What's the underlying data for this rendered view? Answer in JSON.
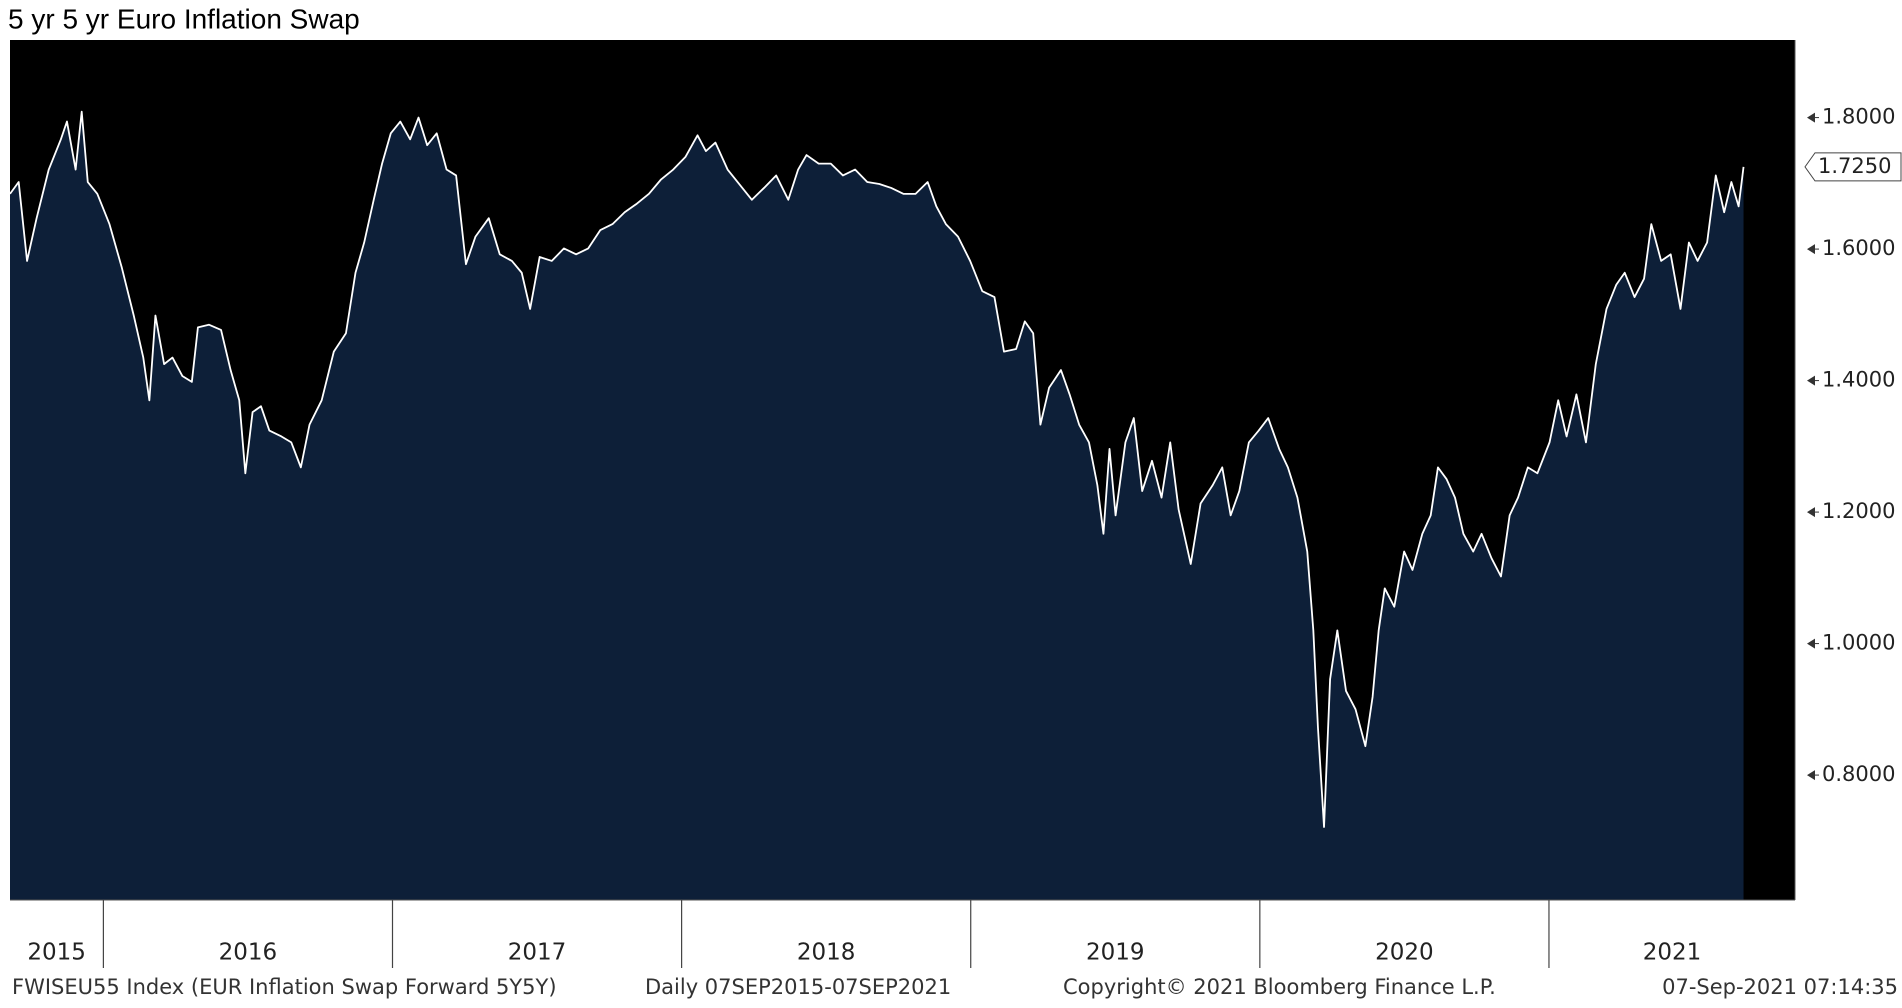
{
  "chart_data": {
    "type": "area",
    "title": "5 yr 5 yr Euro Inflation Swap",
    "footer": [
      "FWISEU55 Index (EUR Inflation Swap Forward 5Y5Y)",
      "Daily 07SEP2015-07SEP2021",
      "Copyright© 2021 Bloomberg Finance L.P.",
      "07-Sep-2021 07:14:35"
    ],
    "x": [
      2015.677,
      2015.707,
      2015.736,
      2015.769,
      2015.811,
      2015.853,
      2015.874,
      2015.904,
      2015.925,
      2015.946,
      2015.979,
      2016.021,
      2016.063,
      2016.105,
      2016.138,
      2016.159,
      2016.18,
      2016.21,
      2016.239,
      2016.273,
      2016.306,
      2016.327,
      2016.365,
      2016.407,
      2016.44,
      2016.47,
      2016.491,
      2016.516,
      2016.545,
      2016.574,
      2016.616,
      2016.65,
      2016.683,
      2016.713,
      2016.755,
      2016.797,
      2016.839,
      2016.872,
      2016.902,
      2016.935,
      2016.964,
      2016.994,
      2017.027,
      2017.061,
      2017.09,
      2017.12,
      2017.153,
      2017.187,
      2017.22,
      2017.254,
      2017.287,
      2017.333,
      2017.371,
      2017.413,
      2017.447,
      2017.476,
      2017.509,
      2017.551,
      2017.593,
      2017.635,
      2017.677,
      2017.719,
      2017.761,
      2017.803,
      2017.845,
      2017.887,
      2017.929,
      2017.971,
      2018.013,
      2018.055,
      2018.084,
      2018.117,
      2018.159,
      2018.21,
      2018.243,
      2018.285,
      2018.327,
      2018.369,
      2018.403,
      2018.432,
      2018.474,
      2018.516,
      2018.558,
      2018.6,
      2018.642,
      2018.684,
      2018.725,
      2018.767,
      2018.809,
      2018.851,
      2018.881,
      2018.914,
      2018.956,
      2018.998,
      2019.04,
      2019.082,
      2019.115,
      2019.157,
      2019.187,
      2019.216,
      2019.241,
      2019.271,
      2019.312,
      2019.342,
      2019.375,
      2019.409,
      2019.438,
      2019.459,
      2019.48,
      2019.501,
      2019.535,
      2019.564,
      2019.593,
      2019.627,
      2019.66,
      2019.69,
      2019.719,
      2019.761,
      2019.795,
      2019.837,
      2019.87,
      2019.899,
      2019.929,
      2019.962,
      2019.996,
      2020.029,
      2020.067,
      2020.097,
      2020.13,
      2020.164,
      2020.185,
      2020.201,
      2020.222,
      2020.243,
      2020.268,
      2020.298,
      2020.331,
      2020.365,
      2020.39,
      2020.411,
      2020.432,
      2020.465,
      2020.499,
      2020.528,
      2020.562,
      2020.591,
      2020.616,
      2020.646,
      2020.675,
      2020.704,
      2020.738,
      2020.767,
      2020.801,
      2020.834,
      2020.864,
      2020.893,
      2020.927,
      2020.96,
      2021.002,
      2021.032,
      2021.061,
      2021.095,
      2021.128,
      2021.162,
      2021.199,
      2021.233,
      2021.262,
      2021.296,
      2021.329,
      2021.354,
      2021.388,
      2021.421,
      2021.455,
      2021.484,
      2021.514,
      2021.547,
      2021.577,
      2021.606,
      2021.631,
      2021.656,
      2021.673
    ],
    "values": [
      1.684,
      1.702,
      1.582,
      1.647,
      1.721,
      1.767,
      1.794,
      1.721,
      1.809,
      1.702,
      1.684,
      1.638,
      1.573,
      1.499,
      1.435,
      1.37,
      1.499,
      1.425,
      1.435,
      1.407,
      1.398,
      1.481,
      1.485,
      1.477,
      1.416,
      1.37,
      1.259,
      1.352,
      1.361,
      1.324,
      1.315,
      1.306,
      1.268,
      1.333,
      1.37,
      1.444,
      1.472,
      1.564,
      1.61,
      1.675,
      1.73,
      1.776,
      1.794,
      1.767,
      1.8,
      1.758,
      1.776,
      1.721,
      1.712,
      1.577,
      1.619,
      1.647,
      1.592,
      1.582,
      1.564,
      1.509,
      1.588,
      1.582,
      1.601,
      1.592,
      1.601,
      1.629,
      1.638,
      1.656,
      1.669,
      1.684,
      1.706,
      1.721,
      1.74,
      1.773,
      1.749,
      1.762,
      1.721,
      1.693,
      1.675,
      1.693,
      1.712,
      1.675,
      1.721,
      1.743,
      1.73,
      1.73,
      1.712,
      1.721,
      1.702,
      1.699,
      1.693,
      1.684,
      1.684,
      1.702,
      1.665,
      1.638,
      1.619,
      1.582,
      1.536,
      1.527,
      1.444,
      1.448,
      1.49,
      1.472,
      1.333,
      1.389,
      1.416,
      1.379,
      1.333,
      1.306,
      1.241,
      1.167,
      1.296,
      1.195,
      1.306,
      1.343,
      1.232,
      1.278,
      1.222,
      1.306,
      1.204,
      1.121,
      1.213,
      1.241,
      1.268,
      1.195,
      1.232,
      1.306,
      1.324,
      1.343,
      1.296,
      1.268,
      1.222,
      1.14,
      1.02,
      0.872,
      0.721,
      0.946,
      1.02,
      0.928,
      0.9,
      0.844,
      0.919,
      1.02,
      1.084,
      1.056,
      1.14,
      1.112,
      1.167,
      1.195,
      1.268,
      1.25,
      1.222,
      1.167,
      1.14,
      1.167,
      1.13,
      1.102,
      1.195,
      1.222,
      1.268,
      1.259,
      1.306,
      1.37,
      1.315,
      1.379,
      1.306,
      1.425,
      1.509,
      1.546,
      1.564,
      1.527,
      1.555,
      1.638,
      1.582,
      1.592,
      1.509,
      1.61,
      1.582,
      1.61,
      1.712,
      1.656,
      1.702,
      1.665,
      1.725
    ],
    "fill_color": "#0d1f38",
    "line_color": "#ffffff",
    "background": "#000000",
    "xlim": [
      2015.677,
      2021.851
    ],
    "year_boundaries": [
      2016,
      2017,
      2018,
      2019,
      2020,
      2021
    ],
    "year_labels": [
      "2015",
      "2016",
      "2017",
      "2018",
      "2019",
      "2020",
      "2021"
    ],
    "ylim": [
      0.61,
      1.918
    ],
    "yticks": [
      {
        "value": 0.8,
        "label": "0.8000"
      },
      {
        "value": 1.0,
        "label": "1.0000"
      },
      {
        "value": 1.2,
        "label": "1.2000"
      },
      {
        "value": 1.4,
        "label": "1.4000"
      },
      {
        "value": 1.6,
        "label": "1.6000"
      },
      {
        "value": 1.8,
        "label": "1.8000"
      }
    ],
    "last_value": 1.725,
    "last_value_label": "1.7250"
  }
}
